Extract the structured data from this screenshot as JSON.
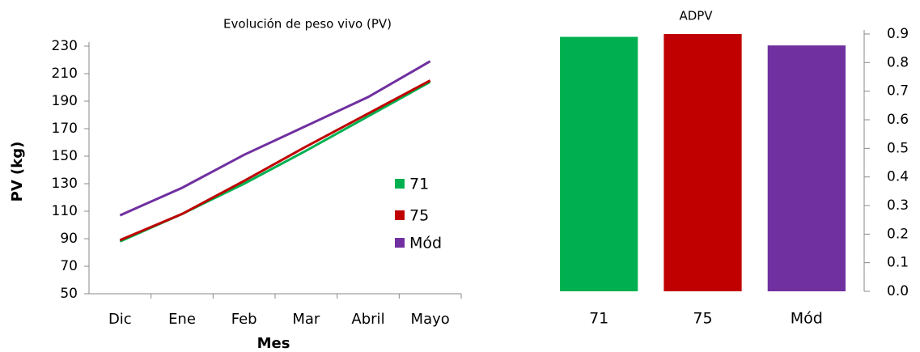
{
  "chart_data": [
    {
      "type": "line",
      "title": "Evolución de peso vivo (PV)",
      "x_label": "Mes",
      "y_label": "PV (kg)",
      "categories": [
        "Dic",
        "Ene",
        "Feb",
        "Mar",
        "Abril",
        "Mayo"
      ],
      "series": [
        {
          "name": "71",
          "color": "#00b050",
          "values": [
            88,
            108,
            130,
            154,
            179,
            204
          ]
        },
        {
          "name": "75",
          "color": "#c00000",
          "values": [
            89,
            108,
            132,
            157,
            181,
            205
          ]
        },
        {
          "name": "Mód",
          "color": "#7030a0",
          "values": [
            107,
            127,
            151,
            172,
            193,
            219
          ]
        }
      ],
      "ylim": [
        50,
        230
      ],
      "yticks": [
        50,
        70,
        90,
        110,
        130,
        150,
        170,
        190,
        210,
        230
      ],
      "legend": "right"
    },
    {
      "type": "bar",
      "title": "ADPV",
      "categories": [
        "71",
        "75",
        "Mód"
      ],
      "values": [
        0.89,
        0.9,
        0.86
      ],
      "colors": [
        "#00b050",
        "#c00000",
        "#7030a0"
      ],
      "ylim": [
        0,
        0.9
      ],
      "yticks": [
        {
          "value": 0,
          "label": "0.0"
        },
        0.1,
        0.2,
        0.3,
        0.4,
        0.5,
        0.6,
        0.7,
        0.8,
        0.9
      ],
      "y_axis_side": "right"
    }
  ]
}
